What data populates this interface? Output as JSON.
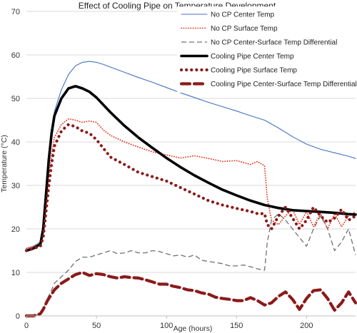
{
  "chart_data": {
    "type": "line",
    "title": "Effect of Cooling Pipe on Temperature Development",
    "xlabel": "Age (hours)",
    "ylabel": "Temperature (°C)",
    "xlim": [
      0,
      235
    ],
    "ylim": [
      0,
      70
    ],
    "xticks": [
      "0",
      "50",
      "100",
      "150",
      "200"
    ],
    "xtick_values": [
      0,
      50,
      100,
      150,
      200
    ],
    "yticks": [
      "0",
      "10",
      "20",
      "30",
      "40",
      "50",
      "60",
      "70"
    ],
    "ytick_values": [
      0,
      10,
      20,
      30,
      40,
      50,
      60,
      70
    ],
    "grid": "horizontal",
    "legend_position": "top-right",
    "series": [
      {
        "name": "No CP Center Temp",
        "color": "#4472c4",
        "style": "solid-thin",
        "x": [
          0,
          5,
          10,
          12,
          14,
          16,
          18,
          20,
          25,
          30,
          35,
          40,
          45,
          50,
          55,
          60,
          70,
          80,
          90,
          100,
          110,
          120,
          130,
          140,
          150,
          160,
          170,
          175,
          180,
          190,
          200,
          210,
          220,
          230,
          235
        ],
        "y": [
          15.5,
          16,
          17,
          20,
          27,
          35,
          42,
          47,
          52,
          55.5,
          57.5,
          58.3,
          58.5,
          58.3,
          57.8,
          57.2,
          56,
          54.8,
          53.7,
          52.5,
          51.3,
          50.2,
          49.1,
          48.1,
          47.1,
          46,
          45,
          44.1,
          43.2,
          41.2,
          39.5,
          38.3,
          37.5,
          36.7,
          36.2
        ]
      },
      {
        "name": "No CP Surface Temp",
        "color": "#e8321e",
        "style": "dotted-small",
        "x": [
          0,
          5,
          10,
          12,
          14,
          16,
          18,
          20,
          25,
          30,
          35,
          40,
          45,
          50,
          55,
          60,
          70,
          80,
          90,
          100,
          110,
          120,
          130,
          140,
          150,
          160,
          165,
          170,
          172,
          175,
          180,
          185,
          190,
          195,
          200,
          205,
          210,
          215,
          220,
          225,
          230,
          235
        ],
        "y": [
          15.5,
          16,
          16.5,
          19,
          25,
          32,
          37,
          41,
          44,
          45.3,
          45,
          44.5,
          44.8,
          44.5,
          42.7,
          41.5,
          40,
          38.8,
          37.7,
          37,
          36.3,
          36.8,
          36.2,
          35.5,
          35.7,
          34.8,
          35.5,
          34.5,
          27,
          22,
          21,
          23,
          24.5,
          21,
          24,
          20.5,
          23.5,
          20,
          23.5,
          20.5,
          23,
          24
        ]
      },
      {
        "name": "No CP Center-Surface Temp Differential",
        "color": "#707070",
        "style": "dashed-thin",
        "x": [
          0,
          5,
          10,
          12,
          15,
          18,
          20,
          25,
          30,
          35,
          40,
          45,
          50,
          55,
          60,
          65,
          70,
          75,
          80,
          85,
          90,
          95,
          100,
          105,
          110,
          115,
          120,
          125,
          130,
          135,
          140,
          145,
          150,
          155,
          160,
          165,
          170,
          172,
          175,
          180,
          185,
          190,
          195,
          200,
          205,
          210,
          215,
          220,
          225,
          230,
          235
        ],
        "y": [
          0,
          0,
          0.5,
          1.5,
          4,
          6,
          7.5,
          9,
          10.5,
          12.5,
          13.5,
          13.5,
          14,
          14.5,
          15,
          14.3,
          14.5,
          15,
          14.5,
          14.5,
          15,
          14.8,
          14.3,
          13.8,
          14,
          13.5,
          14,
          12.8,
          12.5,
          12.3,
          12,
          11.5,
          11.5,
          11.7,
          11.3,
          10.8,
          10.5,
          17,
          22,
          23.5,
          22,
          20,
          18,
          16,
          20,
          23,
          20,
          15,
          17,
          20,
          14
        ]
      },
      {
        "name": "Cooling Pipe Center  Temp",
        "color": "#000000",
        "style": "solid-thick",
        "x": [
          0,
          5,
          10,
          12,
          14,
          16,
          18,
          20,
          25,
          30,
          35,
          40,
          45,
          50,
          55,
          60,
          70,
          80,
          90,
          100,
          110,
          120,
          130,
          140,
          150,
          160,
          170,
          180,
          190,
          200,
          210,
          220,
          230,
          235
        ],
        "y": [
          15,
          15.5,
          16.5,
          20,
          28,
          36,
          42,
          46,
          50,
          52.3,
          52.8,
          52.3,
          51.5,
          50.2,
          48.5,
          46.8,
          43.7,
          41,
          38.6,
          36.3,
          34.2,
          32.3,
          30.6,
          29,
          27.7,
          26.5,
          25.5,
          24.8,
          24.3,
          24.1,
          23.9,
          23.7,
          23.4,
          23.3
        ]
      },
      {
        "name": "Cooling Pipe Surface Temp",
        "color": "#8b1a1a",
        "style": "dotted-large",
        "x": [
          0,
          5,
          10,
          12,
          14,
          16,
          18,
          20,
          25,
          30,
          35,
          40,
          45,
          50,
          55,
          60,
          70,
          80,
          90,
          100,
          110,
          120,
          130,
          140,
          150,
          160,
          165,
          170,
          172,
          175,
          180,
          185,
          190,
          195,
          200,
          205,
          210,
          215,
          220,
          225,
          230,
          235
        ],
        "y": [
          15,
          15.5,
          16,
          18,
          24,
          30,
          35,
          39,
          42.5,
          44,
          43.5,
          42.5,
          42,
          40.5,
          38.5,
          36.5,
          34.8,
          33,
          32,
          31,
          29.5,
          28,
          26.5,
          25.5,
          24.7,
          24,
          23.5,
          23.5,
          21,
          20,
          23,
          25,
          22.5,
          20,
          22,
          25,
          23,
          21.5,
          22.5,
          24.5,
          22,
          23
        ]
      },
      {
        "name": "Cooling Pipe Center-Surface Temp Differential",
        "color": "#8b1a1a",
        "style": "dashed-thick",
        "x": [
          0,
          5,
          10,
          12,
          15,
          18,
          20,
          25,
          30,
          35,
          40,
          45,
          50,
          55,
          60,
          65,
          70,
          75,
          80,
          85,
          90,
          95,
          100,
          105,
          110,
          115,
          120,
          125,
          130,
          135,
          140,
          145,
          150,
          155,
          160,
          165,
          170,
          175,
          180,
          185,
          190,
          195,
          200,
          205,
          210,
          215,
          220,
          225,
          230,
          235
        ],
        "y": [
          0,
          0,
          0.5,
          1.5,
          3.5,
          5,
          6,
          7.5,
          8.5,
          9.5,
          10,
          9.3,
          9.7,
          9.5,
          9,
          8.7,
          9,
          8.8,
          8.7,
          8.3,
          7.8,
          7.3,
          7.3,
          6.8,
          6.5,
          6,
          5.8,
          5.3,
          5,
          4.3,
          4,
          3.8,
          3.5,
          3.5,
          4.2,
          3.5,
          2.5,
          3,
          4.5,
          5.5,
          3.8,
          1.5,
          4,
          5.8,
          6,
          4,
          1.3,
          3,
          5.5,
          3
        ]
      }
    ]
  }
}
